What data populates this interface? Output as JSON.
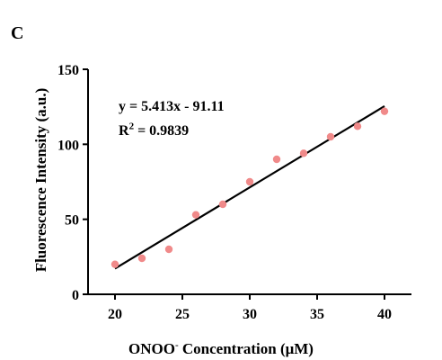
{
  "panel_label": "C",
  "colors": {
    "point": "#f08a8a",
    "line": "#000000",
    "axis": "#000000"
  },
  "chart_data": {
    "type": "scatter",
    "xlabel_main": "ONOO",
    "xlabel_sup": "-",
    "xlabel_rest": " Concentration (μM)",
    "ylabel": "Fluorescence Intensity (a.u.)",
    "xlim": [
      18,
      42
    ],
    "ylim": [
      0,
      150
    ],
    "x_ticks": [
      20,
      25,
      30,
      35,
      40
    ],
    "y_ticks": [
      0,
      50,
      100,
      150
    ],
    "points": [
      {
        "x": 20,
        "y": 20
      },
      {
        "x": 22,
        "y": 24
      },
      {
        "x": 24,
        "y": 30
      },
      {
        "x": 26,
        "y": 53
      },
      {
        "x": 28,
        "y": 60
      },
      {
        "x": 30,
        "y": 75
      },
      {
        "x": 32,
        "y": 90
      },
      {
        "x": 34,
        "y": 94
      },
      {
        "x": 36,
        "y": 105
      },
      {
        "x": 38,
        "y": 112
      },
      {
        "x": 40,
        "y": 122
      }
    ],
    "fit": {
      "slope": 5.413,
      "intercept": -91.11,
      "x_range": [
        20,
        40
      ]
    },
    "equation": "y = 5.413x - 91.11",
    "r2_prefix": "R",
    "r2_sup": "2",
    "r2_suffix": " = 0.9839"
  }
}
